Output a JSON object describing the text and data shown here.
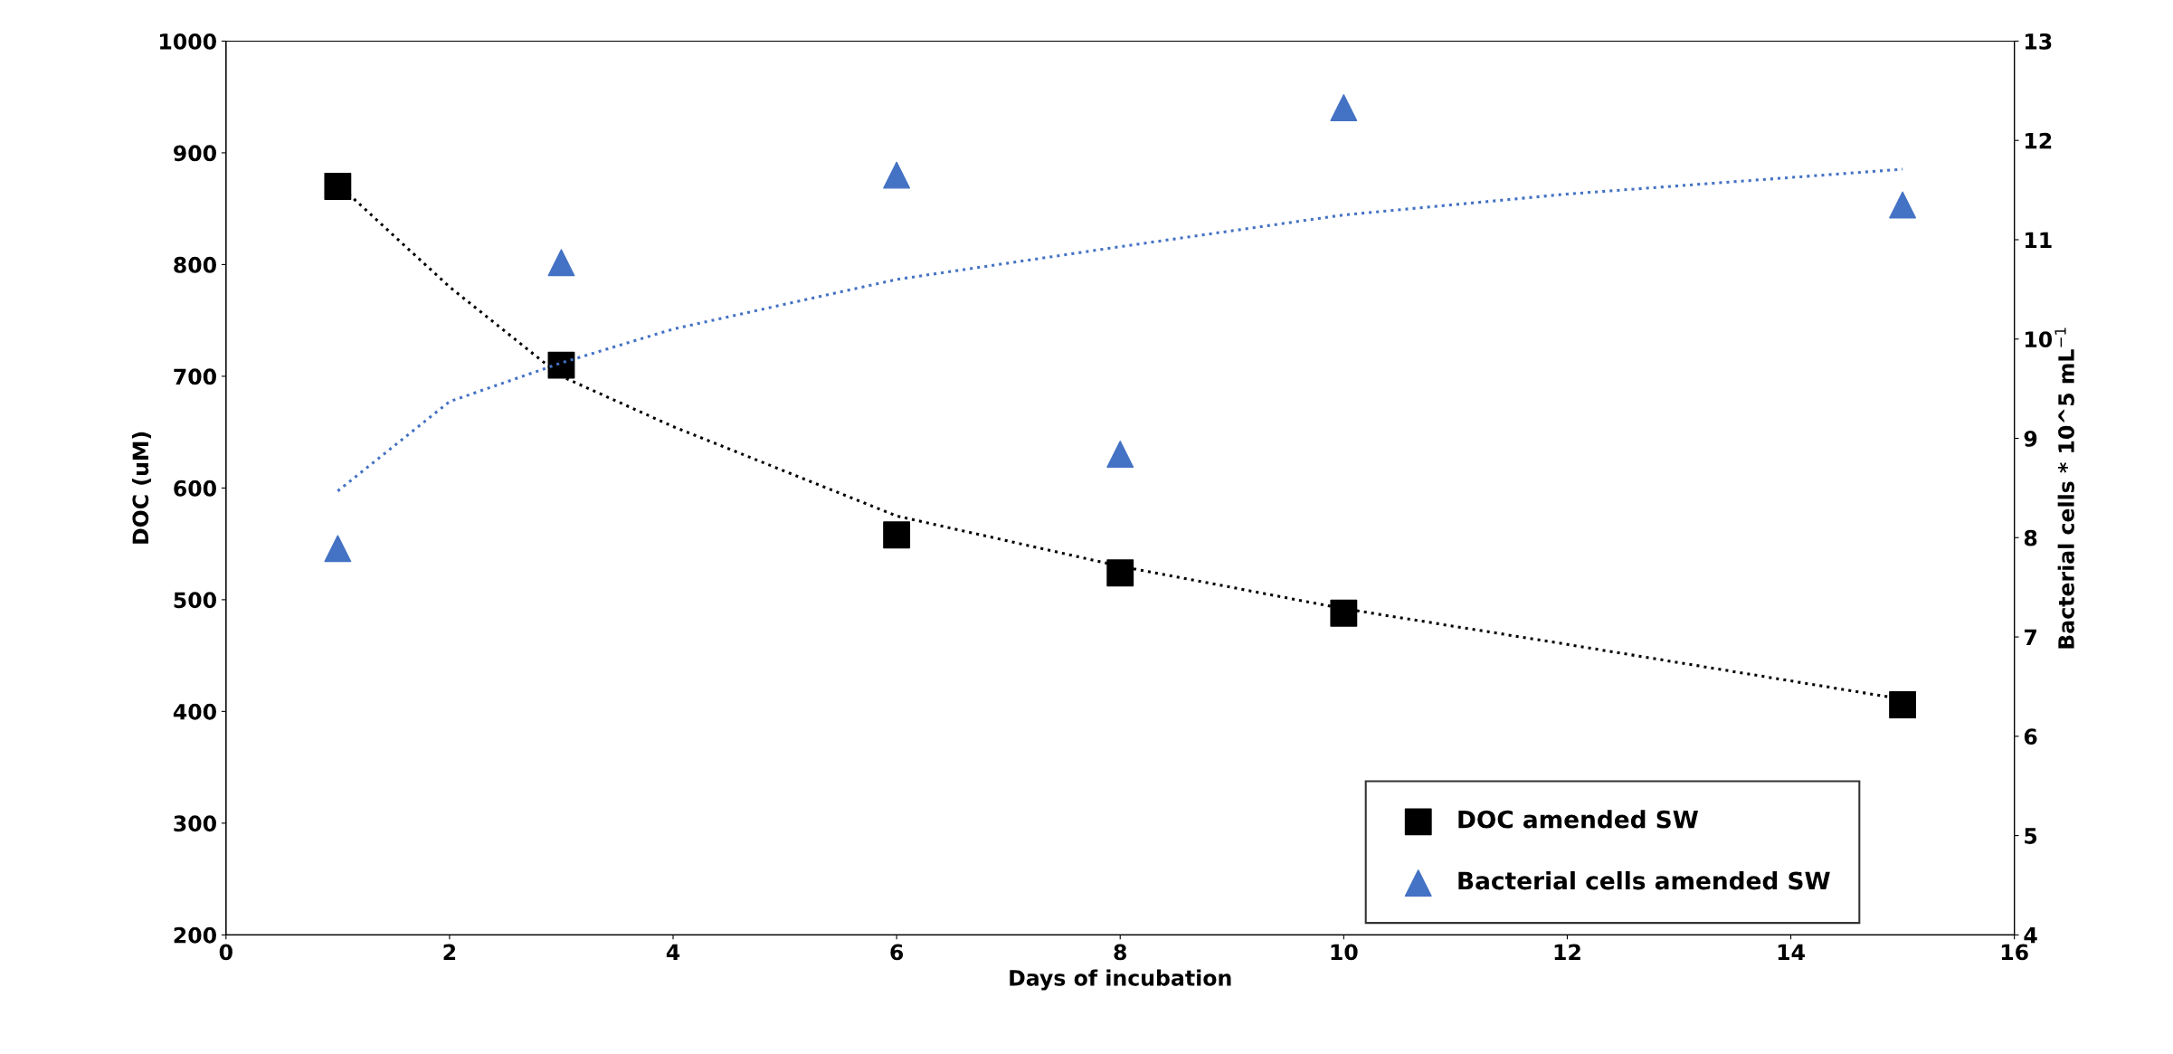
{
  "chart_data": {
    "type": "scatter",
    "xlabel": "Days of incubation",
    "ylabel": "DOC (uM)",
    "y2label": "Bacterial cells * 10^5 mL$^{−1}$",
    "xlim": [
      0,
      16
    ],
    "xticks": [
      0,
      2,
      4,
      6,
      8,
      10,
      12,
      14,
      16
    ],
    "ylim": [
      200,
      1000
    ],
    "yticks": [
      200,
      300,
      400,
      500,
      600,
      700,
      800,
      900,
      1000
    ],
    "y2lim": [
      4,
      13
    ],
    "y2ticks": [
      4,
      5,
      6,
      7,
      8,
      9,
      10,
      11,
      12,
      13
    ],
    "grid": false,
    "legend": "bottom right",
    "series": [
      {
        "name": "DOC amended SW",
        "marker": "square",
        "color": "#000000",
        "x": [
          1,
          3,
          6,
          8,
          10,
          15
        ],
        "values": [
          870,
          710,
          558,
          524,
          488,
          406
        ]
      },
      {
        "name": "Bacterial cells amended SW",
        "marker": "triangle",
        "color": "#4472c4",
        "axis": "y2",
        "x": [
          1,
          3,
          6,
          8,
          10,
          15
        ],
        "values": [
          7.89,
          10.77,
          11.65,
          8.84,
          12.33,
          11.35
        ]
      },
      {
        "type": "line",
        "line_style": "dotted",
        "marker": "none",
        "color": "#000000",
        "x": [
          1,
          2,
          3,
          4,
          6,
          8,
          10,
          12,
          15
        ],
        "values": [
          872,
          780,
          700,
          655,
          575,
          530,
          492,
          460,
          411
        ]
      },
      {
        "type": "line",
        "line_style": "dotted",
        "marker": "none",
        "color": "#4472c4",
        "axis": "y2",
        "x": [
          1,
          2,
          3,
          4,
          6,
          8,
          10,
          12,
          15
        ],
        "values": [
          8.47,
          9.37,
          9.76,
          10.1,
          10.6,
          10.93,
          11.25,
          11.46,
          11.71
        ]
      }
    ]
  }
}
